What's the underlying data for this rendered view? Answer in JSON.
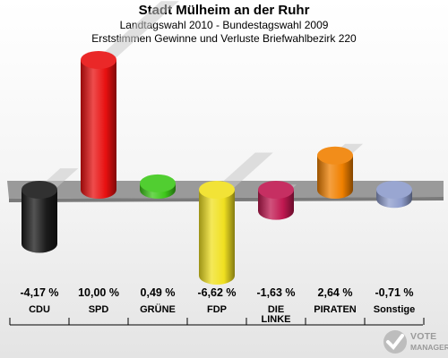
{
  "header": {
    "title": "Stadt Mülheim an der Ruhr",
    "subtitle": "Landtagswahl 2010 - Bundestagswahl 2009",
    "subtitle2": "Erststimmen Gewinne und Verluste Briefwahlbezirk 220"
  },
  "chart_data": {
    "type": "bar",
    "categories": [
      "CDU",
      "SPD",
      "GRÜNE",
      "FDP",
      "DIE LINKE",
      "PIRATEN",
      "Sonstige"
    ],
    "category_lines": [
      [
        "CDU"
      ],
      [
        "SPD"
      ],
      [
        "GRÜNE"
      ],
      [
        "FDP"
      ],
      [
        "DIE",
        "LINKE"
      ],
      [
        "PIRATEN"
      ],
      [
        "Sonstige"
      ]
    ],
    "values": [
      -4.17,
      10.0,
      0.49,
      -6.62,
      -1.63,
      2.64,
      -0.71
    ],
    "value_labels": [
      "-4,17 %",
      "10,00 %",
      "0,49 %",
      "-6,62 %",
      "-1,63 %",
      "2,64 %",
      "-0,71 %"
    ],
    "colors": [
      "#1a1a1a",
      "#e81010",
      "#3ec81a",
      "#f0e020",
      "#c01850",
      "#f08000",
      "#8e9ccc"
    ]
  },
  "logo": {
    "text_line1": "VOTE",
    "text_line2": "MANAGER"
  }
}
